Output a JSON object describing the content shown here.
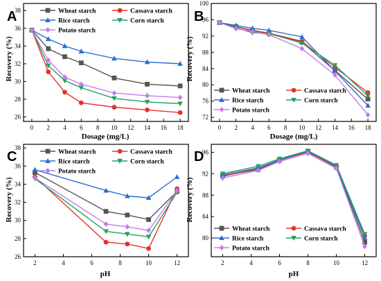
{
  "colors": {
    "wheat": "#555555",
    "cassava": "#e8312f",
    "rice": "#2a6fd6",
    "corn": "#23a064",
    "potato": "#c27ee8"
  },
  "chart_data": [
    {
      "panel": "A",
      "type": "line",
      "xlabel": "Dosage (mg/L)",
      "ylabel": "Recovery (%)",
      "x": [
        0,
        2,
        4,
        6,
        10,
        14,
        18
      ],
      "xlim": [
        -1,
        19
      ],
      "ylim": [
        25.5,
        38.8
      ],
      "xticks": [
        0,
        2,
        4,
        6,
        8,
        10,
        12,
        14,
        16,
        18
      ],
      "yticks": [
        26,
        28,
        30,
        32,
        34,
        36,
        38
      ],
      "legend_placement": "top-right",
      "series": [
        {
          "name": "Wheat starch",
          "key": "wheat",
          "marker": "square",
          "values": [
            35.8,
            33.7,
            32.8,
            32.1,
            30.4,
            29.7,
            29.5
          ]
        },
        {
          "name": "Cassava starch",
          "key": "cassava",
          "marker": "circle",
          "values": [
            35.8,
            31.1,
            28.8,
            27.6,
            27.1,
            26.8,
            26.5
          ]
        },
        {
          "name": "Rice starch",
          "key": "rice",
          "marker": "triangle-up",
          "values": [
            35.8,
            34.8,
            34.0,
            33.4,
            32.6,
            32.2,
            32.0
          ]
        },
        {
          "name": "Corn starch",
          "key": "corn",
          "marker": "triangle-down",
          "values": [
            35.8,
            31.8,
            30.1,
            29.3,
            28.1,
            27.7,
            27.5
          ]
        },
        {
          "name": "Potato starch",
          "key": "potato",
          "marker": "diamond",
          "values": [
            35.8,
            32.4,
            30.5,
            29.7,
            28.7,
            28.4,
            28.2
          ]
        }
      ]
    },
    {
      "panel": "B",
      "type": "line",
      "xlabel": "Dosage (mg/L)",
      "ylabel": "Recovery (%)",
      "x": [
        0,
        2,
        4,
        6,
        10,
        14,
        18
      ],
      "xlim": [
        -1,
        19
      ],
      "ylim": [
        71,
        100
      ],
      "xticks": [
        0,
        2,
        4,
        6,
        8,
        10,
        12,
        14,
        16,
        18
      ],
      "yticks": [
        72,
        76,
        80,
        84,
        88,
        92,
        96,
        100
      ],
      "legend_placement": "bottom-left",
      "series": [
        {
          "name": "Wheat starch",
          "key": "wheat",
          "marker": "square",
          "values": [
            95.3,
            94.3,
            93.3,
            92.6,
            90.5,
            83.5,
            76.5
          ]
        },
        {
          "name": "Cassava starch",
          "key": "cassava",
          "marker": "circle",
          "values": [
            95.3,
            94.3,
            93.4,
            92.7,
            90.7,
            84.3,
            78.1
          ]
        },
        {
          "name": "Rice starch",
          "key": "rice",
          "marker": "triangle-up",
          "values": [
            95.3,
            94.6,
            93.9,
            93.4,
            91.8,
            83.4,
            74.9
          ]
        },
        {
          "name": "Corn starch",
          "key": "corn",
          "marker": "triangle-down",
          "values": [
            95.3,
            94.0,
            92.8,
            92.6,
            90.3,
            84.8,
            77.3
          ]
        },
        {
          "name": "Potato starch",
          "key": "potato",
          "marker": "diamond",
          "values": [
            95.3,
            93.8,
            93.1,
            92.3,
            88.9,
            82.4,
            72.6
          ]
        }
      ]
    },
    {
      "panel": "C",
      "type": "line",
      "xlabel": "pH",
      "ylabel": "Recovery (%)",
      "x": [
        2,
        7,
        8.5,
        10,
        12
      ],
      "xlim": [
        1.2,
        12.8
      ],
      "ylim": [
        26,
        38.4
      ],
      "xticks": [
        2,
        4,
        6,
        8,
        10,
        12
      ],
      "yticks": [
        26,
        28,
        30,
        32,
        34,
        36,
        38
      ],
      "legend_placement": "top-right",
      "series": [
        {
          "name": "Wheat starch",
          "key": "wheat",
          "marker": "square",
          "values": [
            35.3,
            31.0,
            30.6,
            30.1,
            33.2
          ]
        },
        {
          "name": "Cassava starch",
          "key": "cassava",
          "marker": "circle",
          "values": [
            34.8,
            27.6,
            27.4,
            26.9,
            33.5
          ]
        },
        {
          "name": "Rice starch",
          "key": "rice",
          "marker": "triangle-up",
          "values": [
            35.6,
            33.3,
            32.7,
            32.5,
            34.8
          ]
        },
        {
          "name": "Corn starch",
          "key": "corn",
          "marker": "triangle-down",
          "values": [
            34.6,
            28.8,
            28.5,
            28.2,
            33.1
          ]
        },
        {
          "name": "Potato starch",
          "key": "potato",
          "marker": "diamond",
          "values": [
            34.7,
            29.6,
            29.3,
            28.9,
            33.3
          ]
        }
      ]
    },
    {
      "panel": "D",
      "type": "line",
      "xlabel": "pH",
      "ylabel": "Recovery (%)",
      "x": [
        2,
        4.5,
        6,
        8,
        10,
        12
      ],
      "xlim": [
        1.2,
        12.8
      ],
      "ylim": [
        76.5,
        97.5
      ],
      "xticks": [
        2,
        4,
        6,
        8,
        10,
        12
      ],
      "yticks": [
        80,
        84,
        88,
        92,
        96
      ],
      "legend_placement": "bottom-left",
      "series": [
        {
          "name": "Wheat starch",
          "key": "wheat",
          "marker": "square",
          "values": [
            91.6,
            92.8,
            94.5,
            96.1,
            93.2,
            79.2
          ]
        },
        {
          "name": "Cassava starch",
          "key": "cassava",
          "marker": "circle",
          "values": [
            91.5,
            93.0,
            94.6,
            96.0,
            93.3,
            80.4
          ]
        },
        {
          "name": "Rice starch",
          "key": "rice",
          "marker": "triangle-up",
          "values": [
            91.8,
            93.1,
            94.6,
            96.2,
            93.4,
            80.0
          ]
        },
        {
          "name": "Corn starch",
          "key": "corn",
          "marker": "triangle-down",
          "values": [
            92.0,
            93.4,
            94.8,
            96.3,
            93.6,
            80.7
          ]
        },
        {
          "name": "Potato starch",
          "key": "potato",
          "marker": "diamond",
          "values": [
            91.2,
            92.6,
            94.3,
            95.8,
            93.0,
            78.4
          ]
        }
      ]
    }
  ]
}
